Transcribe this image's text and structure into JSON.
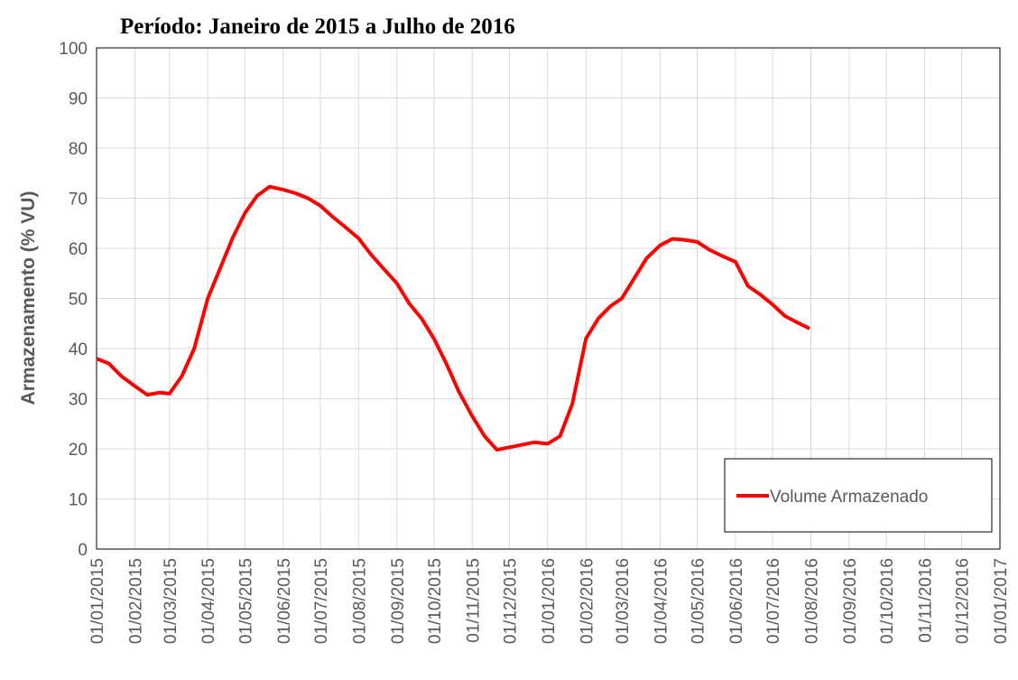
{
  "chart_data": {
    "type": "line",
    "title": "Período: Janeiro de 2015 a Julho de 2016",
    "y_label": "Armazenamento (% VU)",
    "x": [
      "2015-01-01",
      "2015-01-11",
      "2015-01-21",
      "2015-02-01",
      "2015-02-11",
      "2015-02-21",
      "2015-03-01",
      "2015-03-11",
      "2015-03-21",
      "2015-04-01",
      "2015-04-11",
      "2015-04-21",
      "2015-05-01",
      "2015-05-11",
      "2015-05-21",
      "2015-06-01",
      "2015-06-11",
      "2015-06-21",
      "2015-07-01",
      "2015-07-11",
      "2015-07-21",
      "2015-08-01",
      "2015-08-11",
      "2015-08-21",
      "2015-09-01",
      "2015-09-11",
      "2015-09-21",
      "2015-10-01",
      "2015-10-11",
      "2015-10-21",
      "2015-11-01",
      "2015-11-11",
      "2015-11-21",
      "2015-12-01",
      "2015-12-11",
      "2015-12-21",
      "2016-01-01",
      "2016-01-11",
      "2016-01-21",
      "2016-02-01",
      "2016-02-11",
      "2016-02-21",
      "2016-03-01",
      "2016-03-11",
      "2016-03-21",
      "2016-04-01",
      "2016-04-11",
      "2016-04-21",
      "2016-05-01",
      "2016-05-11",
      "2016-05-21",
      "2016-06-01",
      "2016-06-11",
      "2016-06-21",
      "2016-07-01",
      "2016-07-11",
      "2016-07-21",
      "2016-07-31"
    ],
    "series": [
      {
        "name": "Volume Armazenado",
        "color": "#ff0000",
        "values": [
          38,
          37,
          34.5,
          32.5,
          30.8,
          31.2,
          31,
          34.5,
          40,
          50,
          56,
          62,
          67,
          70.5,
          72.3,
          71.7,
          71,
          70,
          68.5,
          66.3,
          64.3,
          62,
          58.8,
          56,
          53,
          49,
          46,
          42,
          37,
          31.5,
          26.5,
          22.5,
          19.8,
          20.3,
          20.8,
          21.3,
          21,
          22.5,
          29,
          42,
          46,
          48.5,
          50,
          54,
          58,
          60.6,
          61.9,
          61.7,
          61.3,
          59.7,
          58.5,
          57.3,
          52.5,
          50.8,
          48.8,
          46.5,
          45.2,
          44
        ]
      }
    ],
    "xlim": [
      "2015-01-01",
      "2017-01-01"
    ],
    "xticks": [
      {
        "value": "2015-01-01",
        "label": "01/01/2015"
      },
      {
        "value": "2015-02-01",
        "label": "01/02/2015"
      },
      {
        "value": "2015-03-01",
        "label": "01/03/2015"
      },
      {
        "value": "2015-04-01",
        "label": "01/04/2015"
      },
      {
        "value": "2015-05-01",
        "label": "01/05/2015"
      },
      {
        "value": "2015-06-01",
        "label": "01/06/2015"
      },
      {
        "value": "2015-07-01",
        "label": "01/07/2015"
      },
      {
        "value": "2015-08-01",
        "label": "01/08/2015"
      },
      {
        "value": "2015-09-01",
        "label": "01/09/2015"
      },
      {
        "value": "2015-10-01",
        "label": "01/10/2015"
      },
      {
        "value": "2015-11-01",
        "label": "01/11/2015"
      },
      {
        "value": "2015-12-01",
        "label": "01/12/2015"
      },
      {
        "value": "2016-01-01",
        "label": "01/01/2016"
      },
      {
        "value": "2016-02-01",
        "label": "01/02/2016"
      },
      {
        "value": "2016-03-01",
        "label": "01/03/2016"
      },
      {
        "value": "2016-04-01",
        "label": "01/04/2016"
      },
      {
        "value": "2016-05-01",
        "label": "01/05/2016"
      },
      {
        "value": "2016-06-01",
        "label": "01/06/2016"
      },
      {
        "value": "2016-07-01",
        "label": "01/07/2016"
      },
      {
        "value": "2016-08-01",
        "label": "01/08/2016"
      },
      {
        "value": "2016-09-01",
        "label": "01/09/2016"
      },
      {
        "value": "2016-10-01",
        "label": "01/10/2016"
      },
      {
        "value": "2016-11-01",
        "label": "01/11/2016"
      },
      {
        "value": "2016-12-01",
        "label": "01/12/2016"
      },
      {
        "value": "2017-01-01",
        "label": "01/01/2017"
      }
    ],
    "ylim": [
      0,
      100
    ],
    "yticks": [
      0,
      10,
      20,
      30,
      40,
      50,
      60,
      70,
      80,
      90,
      100
    ],
    "grid": true,
    "legend": "lower right"
  }
}
